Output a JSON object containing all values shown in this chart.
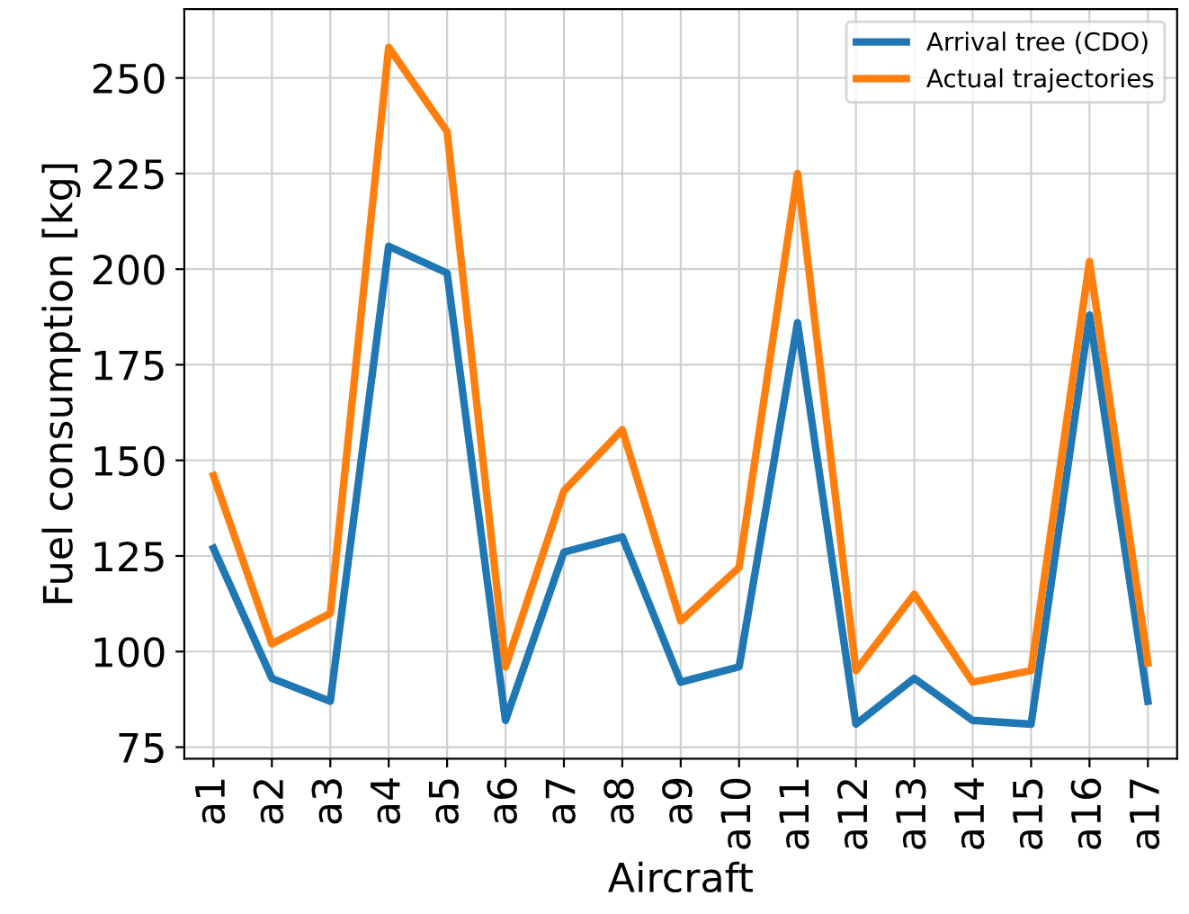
{
  "chart_data": {
    "type": "line",
    "xlabel": "Aircraft",
    "ylabel": "Fuel consumption [kg]",
    "categories": [
      "a1",
      "a2",
      "a3",
      "a4",
      "a5",
      "a6",
      "a7",
      "a8",
      "a9",
      "a10",
      "a11",
      "a12",
      "a13",
      "a14",
      "a15",
      "a16",
      "a17"
    ],
    "series": [
      {
        "name": "Arrival tree (CDO)",
        "color": "#1f77b4",
        "values": [
          127,
          93,
          87,
          206,
          199,
          82,
          126,
          130,
          92,
          96,
          186,
          81,
          93,
          82,
          81,
          188,
          87
        ]
      },
      {
        "name": "Actual trajectories",
        "color": "#ff7f0e",
        "values": [
          146,
          102,
          110,
          258,
          236,
          96,
          142,
          158,
          108,
          122,
          225,
          95,
          115,
          92,
          95,
          202,
          97
        ]
      }
    ],
    "ylim": [
      72,
      268
    ],
    "yticks": [
      75,
      100,
      125,
      150,
      175,
      200,
      225,
      250
    ],
    "grid": true,
    "legend": "top right",
    "marker": "none",
    "line_style": "solid"
  }
}
